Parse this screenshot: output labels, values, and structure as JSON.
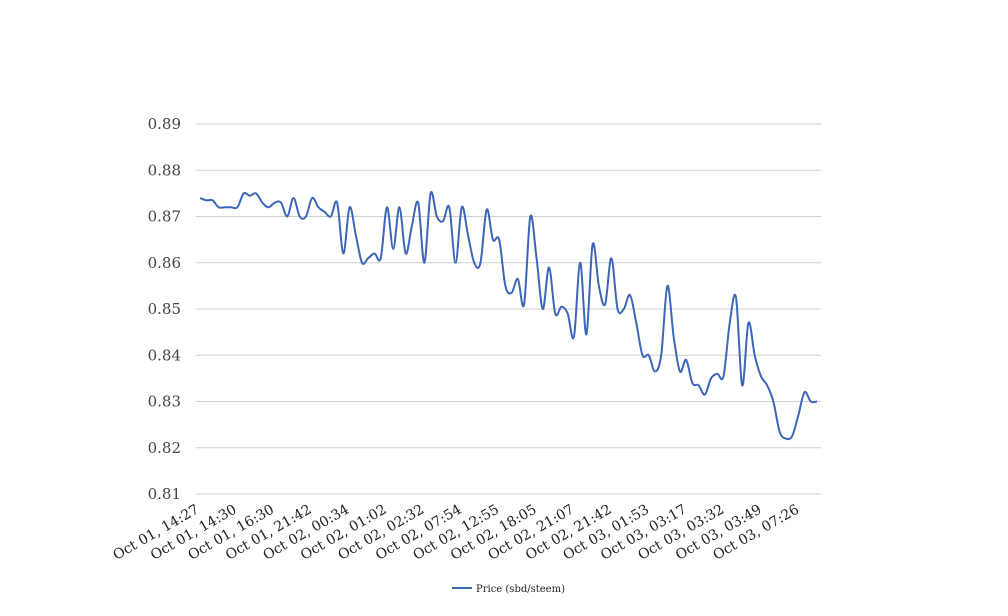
{
  "chart_data": {
    "type": "line",
    "title": "",
    "xlabel": "",
    "ylabel": "",
    "ylim": [
      0.81,
      0.89
    ],
    "yticks": [
      "0.89",
      "0.88",
      "0.87",
      "0.86",
      "0.85",
      "0.84",
      "0.83",
      "0.82",
      "0.81"
    ],
    "grid": true,
    "legend_position": "bottom",
    "x_tick_labels": [
      "Oct 01, 14:27",
      "Oct 01, 14:30",
      "Oct 01, 16:30",
      "Oct 01, 21:42",
      "Oct 02, 00:34",
      "Oct 02, 01:02",
      "Oct 02, 02:32",
      "Oct 02, 07:54",
      "Oct 02, 12:55",
      "Oct 02, 18:05",
      "Oct 02, 21:07",
      "Oct 02, 21:42",
      "Oct 03, 01:53",
      "Oct 03, 03:17",
      "Oct 03, 03:32",
      "Oct 03, 03:49",
      "Oct 03, 07:26"
    ],
    "series": [
      {
        "name": "Price (sbd/steem)",
        "color": "#3c66b8",
        "values": [
          0.874,
          0.8735,
          0.8735,
          0.872,
          0.872,
          0.872,
          0.872,
          0.875,
          0.8745,
          0.875,
          0.873,
          0.872,
          0.873,
          0.873,
          0.87,
          0.874,
          0.87,
          0.87,
          0.874,
          0.872,
          0.871,
          0.87,
          0.873,
          0.862,
          0.872,
          0.866,
          0.86,
          0.861,
          0.862,
          0.861,
          0.872,
          0.863,
          0.872,
          0.862,
          0.868,
          0.873,
          0.86,
          0.875,
          0.87,
          0.869,
          0.872,
          0.86,
          0.872,
          0.866,
          0.86,
          0.86,
          0.8715,
          0.865,
          0.865,
          0.855,
          0.8535,
          0.8565,
          0.851,
          0.87,
          0.861,
          0.85,
          0.859,
          0.849,
          0.8505,
          0.849,
          0.844,
          0.86,
          0.8445,
          0.864,
          0.855,
          0.851,
          0.861,
          0.85,
          0.85,
          0.853,
          0.847,
          0.84,
          0.84,
          0.8365,
          0.84,
          0.855,
          0.844,
          0.8365,
          0.839,
          0.834,
          0.8335,
          0.8315,
          0.835,
          0.836,
          0.8355,
          0.847,
          0.8525,
          0.8335,
          0.847,
          0.84,
          0.8355,
          0.8335,
          0.83,
          0.8235,
          0.822,
          0.8225,
          0.827,
          0.832,
          0.83,
          0.83
        ]
      }
    ]
  }
}
